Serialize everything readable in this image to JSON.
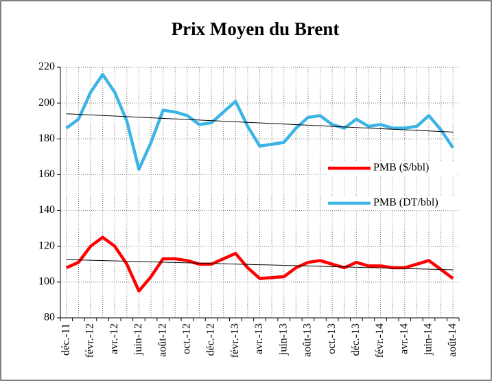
{
  "chart_data": {
    "type": "line",
    "title": "Prix Moyen du Brent",
    "categories": [
      "déc.-11",
      null,
      "févr.-12",
      null,
      "avr.-12",
      null,
      "juin-12",
      null,
      "août-12",
      null,
      "oct.-12",
      null,
      "déc.-12",
      null,
      "févr.-13",
      null,
      "avr.-13",
      null,
      "juin-13",
      null,
      "août-13",
      null,
      "oct.-13",
      null,
      "déc.-13",
      null,
      "févr.-14",
      null,
      "avr.-14",
      null,
      "juin-14",
      null,
      "août-14"
    ],
    "series": [
      {
        "name": "PMB ($/bbl)",
        "color": "#ff0000",
        "values": [
          108,
          111,
          120,
          125,
          120,
          110,
          95,
          103,
          113,
          113,
          112,
          110,
          110,
          113,
          116,
          108,
          102,
          102.5,
          103,
          108,
          111,
          112,
          110,
          108,
          111,
          109,
          109,
          108,
          108,
          110,
          112,
          107,
          102
        ]
      },
      {
        "name": "PMB (DT/bbl)",
        "color": "#3cb4e5",
        "values": [
          186,
          191,
          206,
          216,
          206,
          190,
          163,
          178,
          196,
          195,
          193,
          188,
          189,
          195,
          201,
          187,
          176,
          177,
          178,
          186,
          192,
          193,
          188,
          186,
          191,
          187,
          188,
          186,
          186,
          187,
          193,
          185,
          175
        ]
      }
    ],
    "ylim": [
      80,
      220
    ],
    "yticks": [
      80,
      100,
      120,
      140,
      160,
      180,
      200,
      220
    ],
    "grid": true,
    "trendline": true,
    "legend": "right"
  }
}
